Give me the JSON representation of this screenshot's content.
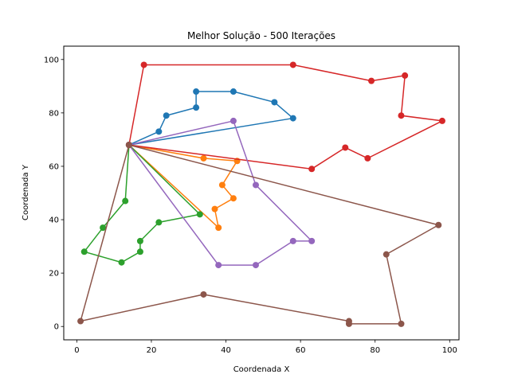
{
  "chart_data": {
    "type": "line",
    "title": "Melhor Solução - 500 Iterações",
    "xlabel": "Coordenada X",
    "ylabel": "Coordenada Y",
    "xlim": [
      -3.5,
      102.5
    ],
    "ylim": [
      -5,
      105
    ],
    "xticks": [
      0,
      20,
      40,
      60,
      80,
      100
    ],
    "yticks": [
      0,
      20,
      40,
      60,
      80,
      100
    ],
    "grid": false,
    "legend": "none",
    "series": [
      {
        "color": "#1f77b4",
        "x": [
          14,
          22,
          24,
          32,
          32,
          42,
          53,
          58,
          14
        ],
        "y": [
          68,
          73,
          79,
          82,
          88,
          88,
          84,
          78,
          68
        ]
      },
      {
        "color": "#ff7f0e",
        "x": [
          14,
          34,
          43,
          39,
          42,
          37,
          38,
          14
        ],
        "y": [
          68,
          63,
          62,
          53,
          48,
          44,
          37,
          68
        ]
      },
      {
        "color": "#2ca02c",
        "x": [
          14,
          13,
          7,
          2,
          12,
          17,
          17,
          22,
          33,
          14
        ],
        "y": [
          68,
          47,
          37,
          28,
          24,
          28,
          32,
          39,
          42,
          68
        ]
      },
      {
        "color": "#d62728",
        "x": [
          14,
          18,
          58,
          79,
          88,
          87,
          98,
          78,
          72,
          63,
          14
        ],
        "y": [
          68,
          98,
          98,
          92,
          94,
          79,
          77,
          63,
          67,
          59,
          68
        ]
      },
      {
        "color": "#9467bd",
        "x": [
          14,
          38,
          48,
          58,
          63,
          48,
          42,
          14
        ],
        "y": [
          68,
          23,
          23,
          32,
          32,
          53,
          77,
          68
        ]
      },
      {
        "color": "#8c564b",
        "x": [
          14,
          97,
          83,
          87,
          73,
          73,
          34,
          1,
          14
        ],
        "y": [
          68,
          38,
          27,
          1,
          1,
          2,
          12,
          2,
          68
        ]
      }
    ]
  }
}
